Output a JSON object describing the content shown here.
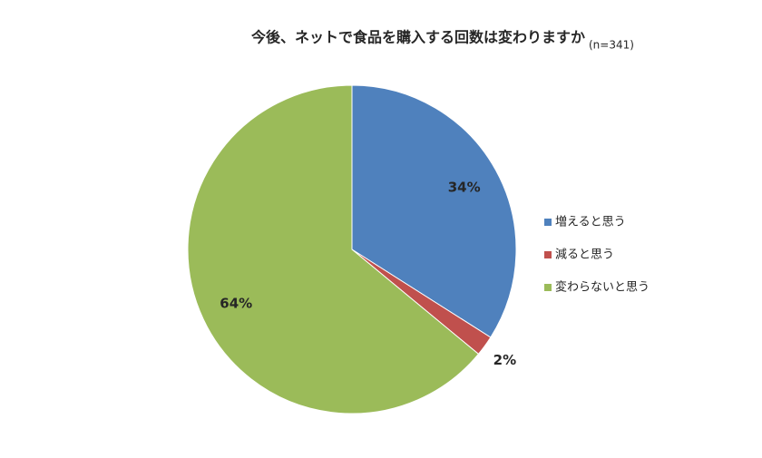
{
  "chart_data": {
    "type": "pie",
    "title": "今後、ネットで食品を購入する回数は変わりますか",
    "subtitle": "(n=341)",
    "categories": [
      "増えると思う",
      "減ると思う",
      "変わらないと思う"
    ],
    "values": [
      34,
      2,
      64
    ],
    "value_labels": [
      "34%",
      "2%",
      "64%"
    ],
    "colors": [
      "#4f81bd",
      "#c0504d",
      "#9bbb59"
    ],
    "legend": "right"
  }
}
